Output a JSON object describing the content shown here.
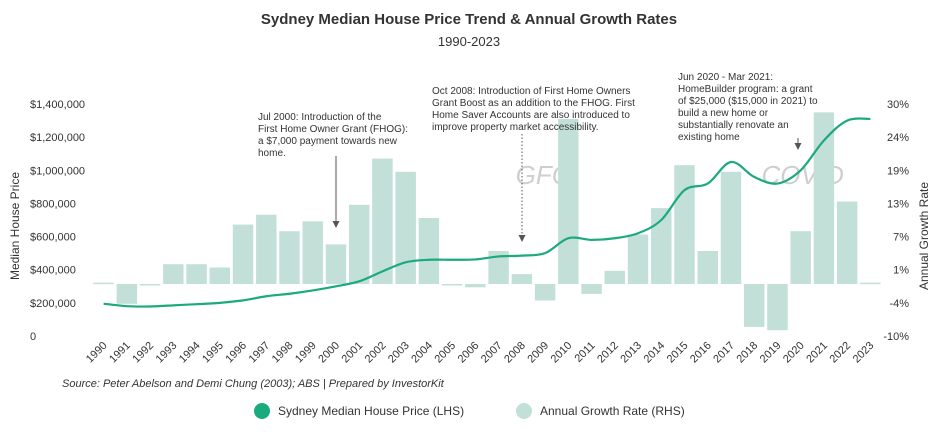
{
  "chart_data": {
    "type": "bar+line",
    "title": "Sydney Median House Price Trend & Annual Growth Rates",
    "subtitle": "1990-2023",
    "categories": [
      "1990",
      "1991",
      "1992",
      "1993",
      "1994",
      "1995",
      "1996",
      "1997",
      "1998",
      "1999",
      "2000",
      "2001",
      "2002",
      "2003",
      "2004",
      "2005",
      "2006",
      "2007",
      "2008",
      "2009",
      "2010",
      "2011",
      "2012",
      "2013",
      "2014",
      "2015",
      "2016",
      "2017",
      "2018",
      "2019",
      "2020",
      "2021",
      "2022",
      "2023"
    ],
    "ylabel_left": "Median House Price",
    "ylabel_right": "Annual Growth Rate",
    "left_ticks": [
      "$1,400,000",
      "$1,200,000",
      "$1,000,000",
      "$800,000",
      "$600,000",
      "$400,000",
      "$200,000",
      "0"
    ],
    "left_tick_values": [
      1400000,
      1200000,
      1000000,
      800000,
      600000,
      400000,
      200000,
      0
    ],
    "right_ticks": [
      "30%",
      "24%",
      "19%",
      "13%",
      "7%",
      "1%",
      "-4%",
      "-10%"
    ],
    "left_ylim": [
      0,
      1400000
    ],
    "series": [
      {
        "name": "Sydney Median House Price (LHS)",
        "type": "line",
        "axis": "left",
        "color": "#1aaa7e",
        "values": [
          195000,
          180000,
          178000,
          185000,
          192000,
          200000,
          215000,
          240000,
          255000,
          275000,
          300000,
          330000,
          390000,
          445000,
          460000,
          460000,
          462000,
          480000,
          485000,
          500000,
          590000,
          580000,
          590000,
          620000,
          700000,
          880000,
          920000,
          1050000,
          960000,
          920000,
          1000000,
          1180000,
          1300000,
          1310000
        ]
      },
      {
        "name": "Annual Growth Rate (RHS)",
        "type": "bar",
        "axis": "right",
        "color": "#c2e0d8",
        "values": [
          0.2,
          -3.0,
          -0.2,
          3.0,
          3.0,
          2.5,
          9.0,
          10.5,
          8.0,
          9.5,
          6.0,
          12.0,
          19.0,
          17.0,
          10.0,
          0.0,
          -0.5,
          5.0,
          1.5,
          -2.5,
          25.0,
          -1.5,
          2.0,
          7.5,
          11.5,
          18.0,
          5.0,
          17.0,
          -6.5,
          -7.0,
          8.0,
          26.0,
          12.5,
          0.2
        ]
      }
    ],
    "annotations": [
      {
        "year": "2000",
        "lines": [
          "Jul 2000: Introduction of the",
          "First Home Owner Grant (FHOG):",
          "a $7,000 payment towards new",
          "home."
        ],
        "arrow": "solid"
      },
      {
        "year": "2008",
        "lines": [
          "Oct 2008: Introduction of First Home Owners",
          "Grant Boost as an addition to the FHOG. First",
          "Home Saver Accounts are also introduced to",
          "improve property market accessibility."
        ],
        "arrow": "dotted"
      },
      {
        "year": "2020",
        "lines": [
          "Jun 2020 -  Mar 2021:",
          "HomeBuilder program: a grant",
          "of $25,000 ($15,000 in 2021) to",
          "build a new home or",
          "substantially renovate an",
          "existing home"
        ],
        "arrow": "solid"
      }
    ],
    "events": [
      {
        "label": "GFC",
        "year": "2009"
      },
      {
        "label": "COVID",
        "year": "2020"
      }
    ],
    "source": "Source: Peter Abelson and Demi Chung (2003); ABS | Prepared by InvestorKit",
    "legend": [
      {
        "label": "Sydney Median House Price (LHS)",
        "shape": "circle",
        "color": "#1aaa7e"
      },
      {
        "label": "Annual Growth Rate (RHS)",
        "shape": "circle",
        "color": "#c2e0d8"
      }
    ]
  }
}
